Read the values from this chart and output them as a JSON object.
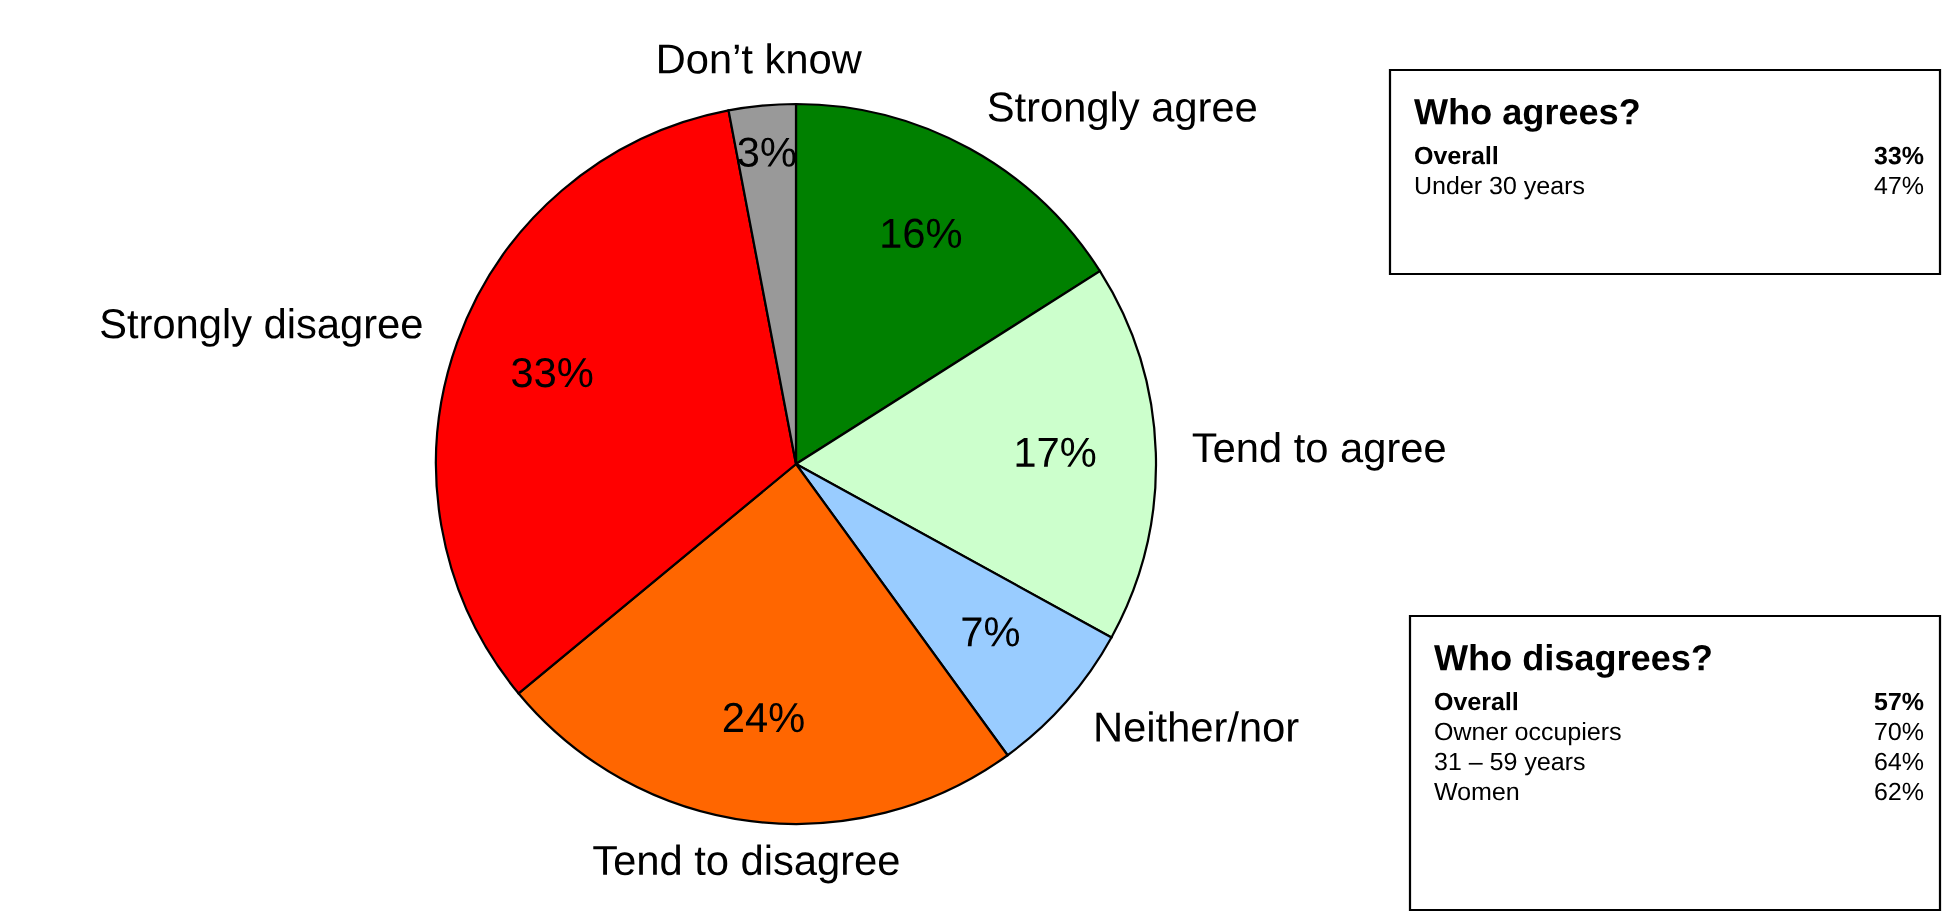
{
  "chart_data": {
    "type": "pie",
    "categories": [
      "Strongly agree",
      "Tend to agree",
      "Neither/nor",
      "Tend to disagree",
      "Strongly disagree",
      "Don’t know"
    ],
    "values": [
      16,
      17,
      7,
      24,
      33,
      3
    ],
    "value_labels": [
      "16%",
      "17%",
      "7%",
      "24%",
      "33%",
      "3%"
    ],
    "colors": [
      "#008000",
      "#ccffcc",
      "#99ccff",
      "#ff6600",
      "#ff0000",
      "#999999"
    ],
    "legend": false,
    "annotations": [
      "Who agrees?",
      "Overall 33%",
      "Under 30 years 47%",
      "Who disagrees?",
      "Overall 57%",
      "Owner occupiers 70%",
      "31 – 59 years 64%",
      "Women 62%"
    ]
  }
}
